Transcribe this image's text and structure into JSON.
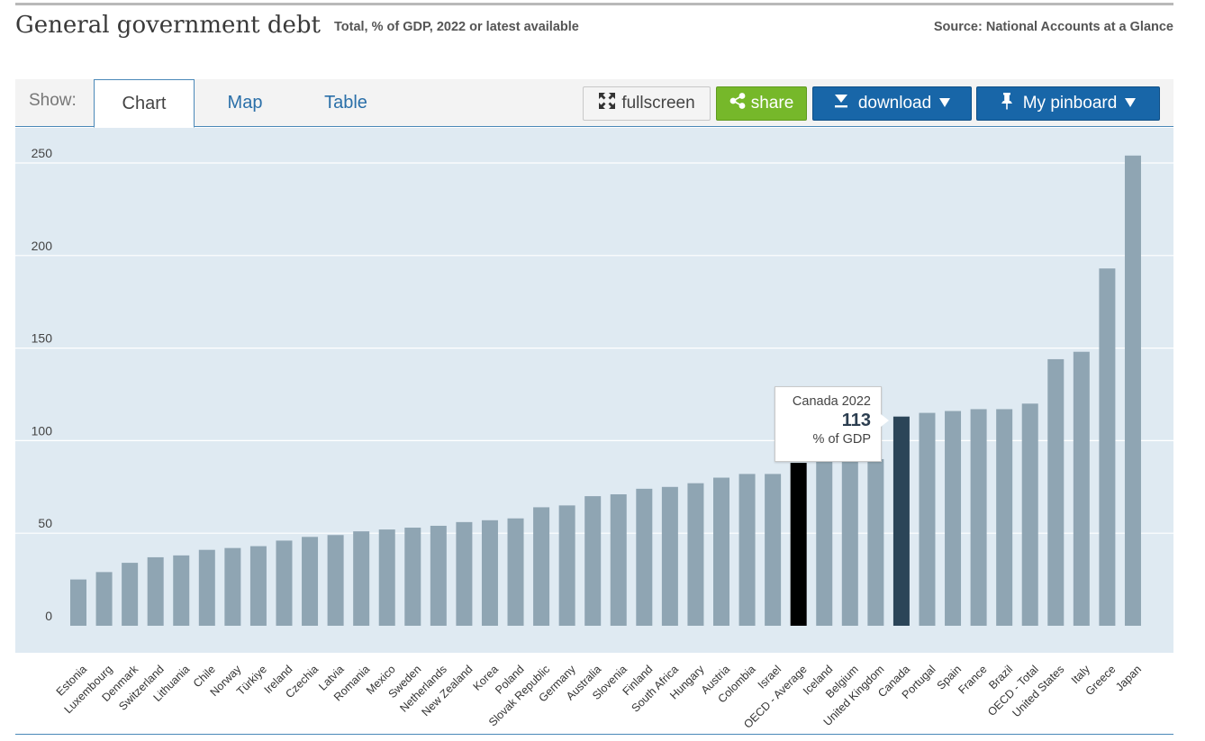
{
  "header": {
    "title": "General government debt",
    "subtitle": "Total, % of GDP, 2022 or latest available",
    "source": "Source: National Accounts at a Glance"
  },
  "toolbar": {
    "show_label": "Show:",
    "tabs": [
      {
        "label": "Chart",
        "active": true
      },
      {
        "label": "Map",
        "active": false
      },
      {
        "label": "Table",
        "active": false
      }
    ],
    "fullscreen_label": "fullscreen",
    "share_label": "share",
    "download_label": "download",
    "pinboard_label": "My pinboard",
    "icons": {
      "fullscreen": "expand-arrows-icon",
      "share": "share-icon",
      "download": "download-arrow-icon",
      "pinboard": "pushpin-icon",
      "dropdown": "caret-down-icon"
    }
  },
  "tooltip": {
    "title": "Canada 2022",
    "value": "113",
    "unit": "% of GDP"
  },
  "colors": {
    "bar": "#8fa5b3",
    "highlight_bar": "#2b4558",
    "average_bar": "#000000",
    "plot_bg": "#dfeaf2",
    "share_green": "#76b82a",
    "button_blue": "#1866a8"
  },
  "chart_data": {
    "type": "bar",
    "title": "General government debt",
    "subtitle": "Total, % of GDP, 2022 or latest available",
    "xlabel": "",
    "ylabel": "",
    "ylim": [
      0,
      250
    ],
    "yticks": [
      0,
      50,
      100,
      150,
      200,
      250
    ],
    "grid": true,
    "highlight": "Canada",
    "average": "OECD - Average",
    "categories": [
      "Estonia",
      "Luxembourg",
      "Denmark",
      "Switzerland",
      "Lithuania",
      "Chile",
      "Norway",
      "Türkiye",
      "Ireland",
      "Czechia",
      "Latvia",
      "Romania",
      "Mexico",
      "Sweden",
      "Netherlands",
      "New Zealand",
      "Korea",
      "Poland",
      "Slovak Republic",
      "Germany",
      "Australia",
      "Slovenia",
      "Finland",
      "South Africa",
      "Hungary",
      "Austria",
      "Colombia",
      "Israel",
      "OECD - Average",
      "Iceland",
      "Belgium",
      "United Kingdom",
      "Canada",
      "Portugal",
      "Spain",
      "France",
      "Brazil",
      "OECD - Total",
      "United States",
      "Italy",
      "Greece",
      "Japan"
    ],
    "values": [
      25,
      29,
      34,
      37,
      38,
      41,
      42,
      43,
      46,
      48,
      49,
      51,
      52,
      53,
      54,
      56,
      57,
      58,
      64,
      65,
      70,
      71,
      74,
      75,
      77,
      80,
      82,
      82,
      88,
      89,
      89,
      90,
      113,
      115,
      116,
      117,
      117,
      120,
      144,
      148,
      193,
      254
    ]
  }
}
